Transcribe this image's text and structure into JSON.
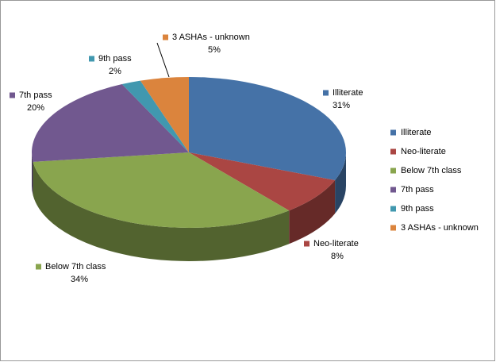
{
  "chart_data": {
    "type": "pie",
    "categories": [
      "Illiterate",
      "Neo-literate",
      "Below 7th class",
      "7th pass",
      "9th pass",
      "3 ASHAs - unknown"
    ],
    "values": [
      31,
      8,
      34,
      20,
      2,
      5
    ],
    "value_labels": [
      "31%",
      "8%",
      "34%",
      "20%",
      "2%",
      "5%"
    ],
    "colors": [
      "#4572a7",
      "#aa4643",
      "#89a54e",
      "#71588f",
      "#4198af",
      "#db843d"
    ],
    "legend": "right"
  }
}
